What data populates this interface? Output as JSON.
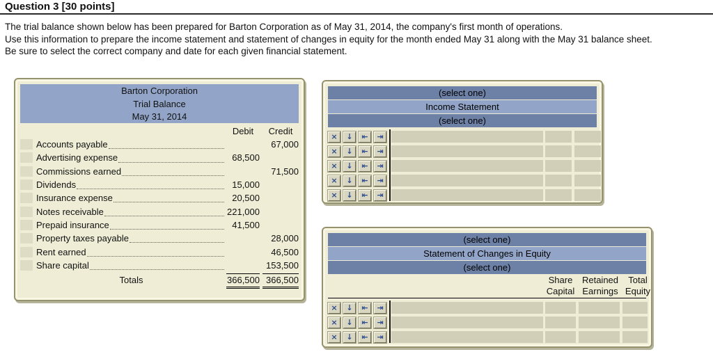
{
  "header": {
    "title": "Question 3 [30 points]"
  },
  "instructions": {
    "line1": "The trial balance shown below has been prepared for Barton Corporation as of May 31, 2014, the company's first month of operations.",
    "line2": "Use this information to prepare the income statement and statement of changes in equity for the month ended May 31 along with the May 31 balance sheet.",
    "line3": "Be sure to select the correct company and date for each given financial statement."
  },
  "trial_balance": {
    "company": "Barton Corporation",
    "statement": "Trial Balance",
    "date": "May 31, 2014",
    "col_debit": "Debit",
    "col_credit": "Credit",
    "rows": [
      {
        "account": "Accounts payable",
        "debit": "",
        "credit": "67,000"
      },
      {
        "account": "Advertising expense",
        "debit": "68,500",
        "credit": ""
      },
      {
        "account": "Commissions earned",
        "debit": "",
        "credit": "71,500"
      },
      {
        "account": "Dividends",
        "debit": "15,000",
        "credit": ""
      },
      {
        "account": "Insurance expense",
        "debit": "20,500",
        "credit": ""
      },
      {
        "account": "Notes receivable",
        "debit": "221,000",
        "credit": ""
      },
      {
        "account": "Prepaid insurance",
        "debit": "41,500",
        "credit": ""
      },
      {
        "account": "Property taxes payable",
        "debit": "",
        "credit": "28,000"
      },
      {
        "account": "Rent earned",
        "debit": "",
        "credit": "46,500"
      },
      {
        "account": "Share capital",
        "debit": "",
        "credit": "153,500"
      }
    ],
    "totals": {
      "label": "Totals",
      "debit": "366,500",
      "credit": "366,500"
    }
  },
  "income_statement": {
    "company_select": "(select one)",
    "title": "Income Statement",
    "period_select": "(select one)",
    "row_count": 5
  },
  "equity_statement": {
    "company_select": "(select one)",
    "title": "Statement of Changes in Equity",
    "period_select": "(select one)",
    "columns": [
      {
        "line1": "Share",
        "line2": "Capital"
      },
      {
        "line1": "Retained",
        "line2": "Earnings"
      },
      {
        "line1": "Total",
        "line2": "Equity"
      }
    ],
    "row_count": 3
  },
  "row_tools": {
    "delete_icon": "×",
    "move_down_icon": "↓",
    "move_left_icon": "⇤",
    "move_right_icon": "⇥"
  },
  "colors": {
    "header_bar_dark": "#6d80a6",
    "header_bar_light": "#92a5c8",
    "panel_bg": "#efedd6",
    "cell_bg": "#d2cfb8",
    "tool_glyph": "#2d4c8e"
  }
}
